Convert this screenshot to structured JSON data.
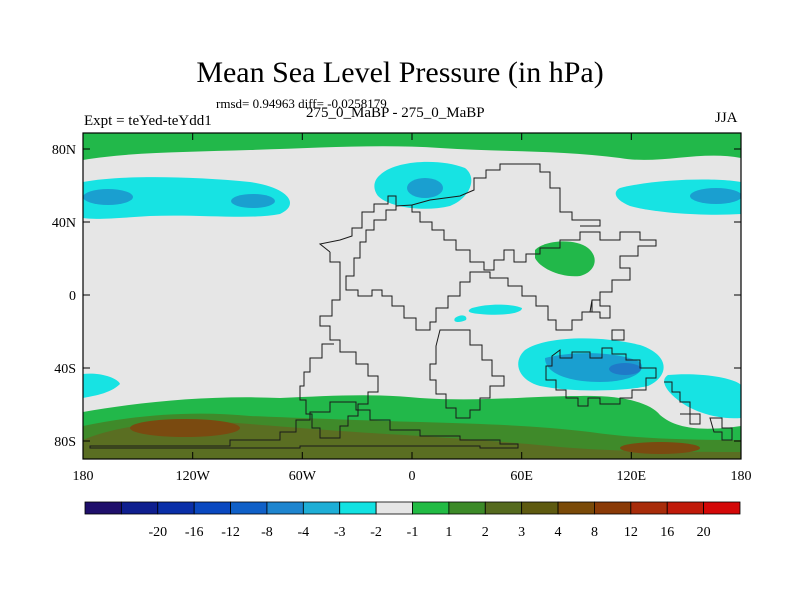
{
  "title": "Mean Sea Level Pressure (in hPa)",
  "stats_line": "rmsd= 0.94963 diff= -0.0258179",
  "experiment_line": "Expt = teYed-teYdd1",
  "subtitle": "275_0_MaBP - 275_0_MaBP",
  "season": "JJA",
  "map_type": "global lat-lon contour fill of pressure difference",
  "axes": {
    "x_ticks": [
      "180",
      "120W",
      "60W",
      "0",
      "60E",
      "120E",
      "180"
    ],
    "y_ticks": [
      "80N",
      "40N",
      "0",
      "40S",
      "80S"
    ]
  },
  "colorbar": {
    "colors": [
      "#1f0f6b",
      "#0f1f8f",
      "#0a2fa8",
      "#0a48c0",
      "#1060c8",
      "#1e85cf",
      "#1eaed6",
      "#12e2e2",
      "#e6e6e6",
      "#22bb44",
      "#3c8a28",
      "#556a1e",
      "#5e5a10",
      "#7a4a08",
      "#8a3a06",
      "#a82c0a",
      "#c01a0a",
      "#d40808"
    ],
    "labels": [
      "-20",
      "-16",
      "-12",
      "-8",
      "-4",
      "-3",
      "-2",
      "-1",
      "1",
      "2",
      "3",
      "4",
      "8",
      "12",
      "16",
      "20"
    ]
  },
  "regions": {
    "land_lowpressure_cyan": "#17e3e3",
    "mid_blue": "#1a9fd0",
    "deep_blue": "#1f7ac8",
    "neutral_grey": "#e6e6e6",
    "green": "#22b84a",
    "dark_green": "#3f8a2a",
    "olive": "#5a6e22",
    "brown": "#7a4a10"
  }
}
